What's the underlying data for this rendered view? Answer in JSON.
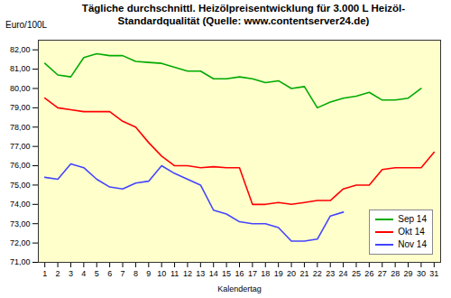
{
  "chart_data": {
    "type": "line",
    "title": "Tägliche durchschnittl. Heizölpreisentwicklung für 3.000 L Heizöl-\nStandardqualität (Quelle: www.contentserver24.de)",
    "xlabel": "Kalendertag",
    "ylabel": "Euro/100L",
    "x": [
      1,
      2,
      3,
      4,
      5,
      6,
      7,
      8,
      9,
      10,
      11,
      12,
      13,
      14,
      15,
      16,
      17,
      18,
      19,
      20,
      21,
      22,
      23,
      24,
      25,
      26,
      27,
      28,
      29,
      30,
      31
    ],
    "series": [
      {
        "name": "Sep 14",
        "color": "#00AA00",
        "values": [
          81.3,
          80.7,
          80.6,
          81.6,
          81.8,
          81.7,
          81.7,
          81.4,
          81.35,
          81.3,
          81.1,
          80.9,
          80.9,
          80.5,
          80.5,
          80.6,
          80.5,
          80.3,
          80.4,
          80.0,
          80.1,
          79.0,
          79.3,
          79.5,
          79.6,
          79.8,
          79.4,
          79.4,
          79.5,
          80.0,
          null
        ]
      },
      {
        "name": "Okt 14",
        "color": "#FF0000",
        "values": [
          79.5,
          79.0,
          78.9,
          78.8,
          78.8,
          78.8,
          78.3,
          78.0,
          77.2,
          76.5,
          76.0,
          76.0,
          75.9,
          75.95,
          75.9,
          75.9,
          74.0,
          74.0,
          74.1,
          74.0,
          74.1,
          74.2,
          74.2,
          74.8,
          75.0,
          75.0,
          75.8,
          75.9,
          75.9,
          75.9,
          76.7
        ]
      },
      {
        "name": "Nov 14",
        "color": "#4444FF",
        "values": [
          75.4,
          75.3,
          76.1,
          75.9,
          75.3,
          74.9,
          74.8,
          75.1,
          75.2,
          76.0,
          75.6,
          75.3,
          75.0,
          73.7,
          73.5,
          73.1,
          73.0,
          73.0,
          72.8,
          72.1,
          72.1,
          72.2,
          73.4,
          73.6,
          null,
          null,
          null,
          null,
          null,
          null,
          null
        ]
      }
    ],
    "xlim": [
      0.5,
      31.5
    ],
    "xticks": [
      1,
      2,
      3,
      4,
      5,
      6,
      7,
      8,
      9,
      10,
      11,
      12,
      13,
      14,
      15,
      16,
      17,
      18,
      19,
      20,
      21,
      22,
      23,
      24,
      25,
      26,
      27,
      28,
      29,
      30,
      31
    ],
    "ylim": [
      71.0,
      82.5
    ],
    "yticks": [
      {
        "value": 71.0,
        "label": "71,00"
      },
      {
        "value": 72.0,
        "label": "72,00"
      },
      {
        "value": 73.0,
        "label": "73,00"
      },
      {
        "value": 74.0,
        "label": "74,00"
      },
      {
        "value": 75.0,
        "label": "75,00"
      },
      {
        "value": 76.0,
        "label": "76,00"
      },
      {
        "value": 77.0,
        "label": "77,00"
      },
      {
        "value": 78.0,
        "label": "78,00"
      },
      {
        "value": 79.0,
        "label": "79,00"
      },
      {
        "value": 80.0,
        "label": "80,00"
      },
      {
        "value": 81.0,
        "label": "81,00"
      },
      {
        "value": 82.0,
        "label": "82,00"
      }
    ],
    "grid": true,
    "legend": "lower right"
  }
}
